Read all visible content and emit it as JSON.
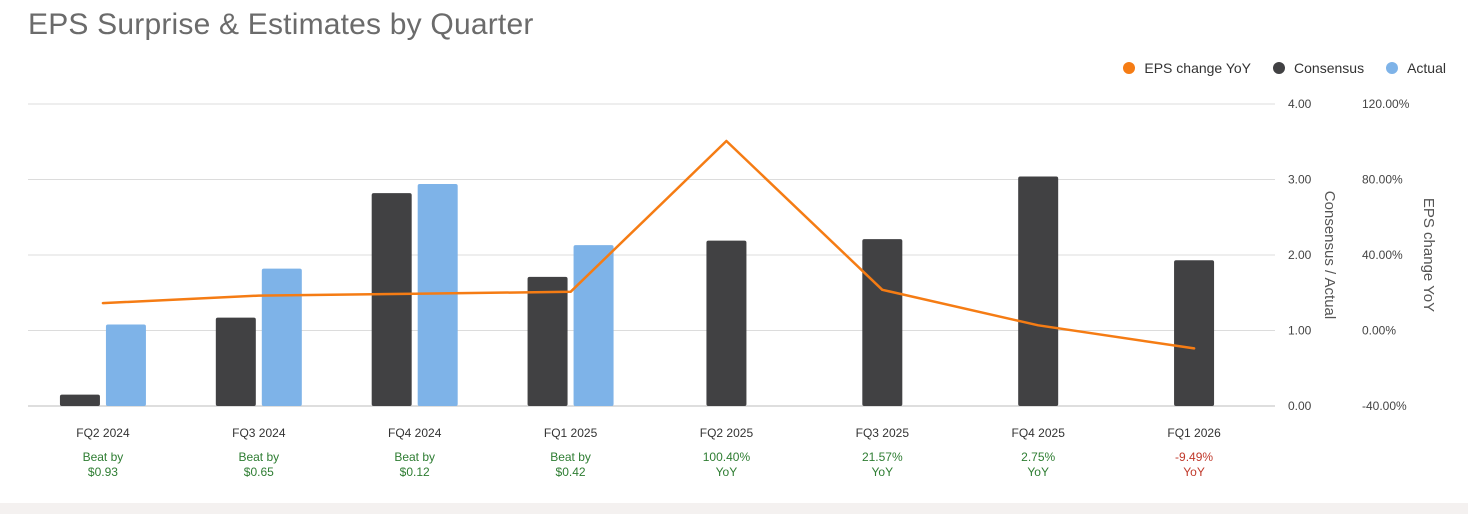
{
  "title": "EPS Surprise & Estimates by Quarter",
  "colors": {
    "consensus": "#414143",
    "actual": "#7eb3e8",
    "yoy": "#f57c14",
    "beat": "#2e7d32",
    "miss": "#c0392b",
    "grid": "#dcdcdc"
  },
  "legend": [
    {
      "label": "EPS change YoY",
      "color": "#f57c14"
    },
    {
      "label": "Consensus",
      "color": "#414143"
    },
    {
      "label": "Actual",
      "color": "#7eb3e8"
    }
  ],
  "chart_data": {
    "type": "bar",
    "title": "EPS Surprise & Estimates by Quarter",
    "categories": [
      "FQ2 2024",
      "FQ3 2024",
      "FQ4 2024",
      "FQ1 2025",
      "FQ2 2025",
      "FQ3 2025",
      "FQ4 2025",
      "FQ1 2026"
    ],
    "series": [
      {
        "name": "Consensus",
        "type": "bar",
        "axis": "left",
        "values": [
          0.15,
          1.17,
          2.82,
          1.71,
          2.19,
          2.21,
          3.04,
          1.93
        ]
      },
      {
        "name": "Actual",
        "type": "bar",
        "axis": "left",
        "values": [
          1.08,
          1.82,
          2.94,
          2.13,
          null,
          null,
          null,
          null
        ]
      },
      {
        "name": "EPS change YoY",
        "type": "line",
        "axis": "right",
        "values": [
          14.5,
          18.5,
          19.5,
          20.5,
          100.4,
          21.57,
          2.75,
          -9.49
        ]
      }
    ],
    "left_axis": {
      "label": "Consensus / Actual",
      "ylim": [
        0,
        4
      ],
      "ticks": [
        "0.00",
        "1.00",
        "2.00",
        "3.00",
        "4.00"
      ]
    },
    "right_axis": {
      "label": "EPS change YoY",
      "ylim": [
        -40,
        120
      ],
      "ticks": [
        "-40.00%",
        "0.00%",
        "40.00%",
        "80.00%",
        "120.00%"
      ]
    },
    "grid": true,
    "legend_position": "top-right",
    "annotations": [
      {
        "line1": "Beat by",
        "line2": "$0.93",
        "status": "beat"
      },
      {
        "line1": "Beat by",
        "line2": "$0.65",
        "status": "beat"
      },
      {
        "line1": "Beat by",
        "line2": "$0.12",
        "status": "beat"
      },
      {
        "line1": "Beat by",
        "line2": "$0.42",
        "status": "beat"
      },
      {
        "line1": "100.40%",
        "line2": "YoY",
        "status": "beat"
      },
      {
        "line1": "21.57%",
        "line2": "YoY",
        "status": "beat"
      },
      {
        "line1": "2.75%",
        "line2": "YoY",
        "status": "beat"
      },
      {
        "line1": "-9.49%",
        "line2": "YoY",
        "status": "miss"
      }
    ]
  }
}
